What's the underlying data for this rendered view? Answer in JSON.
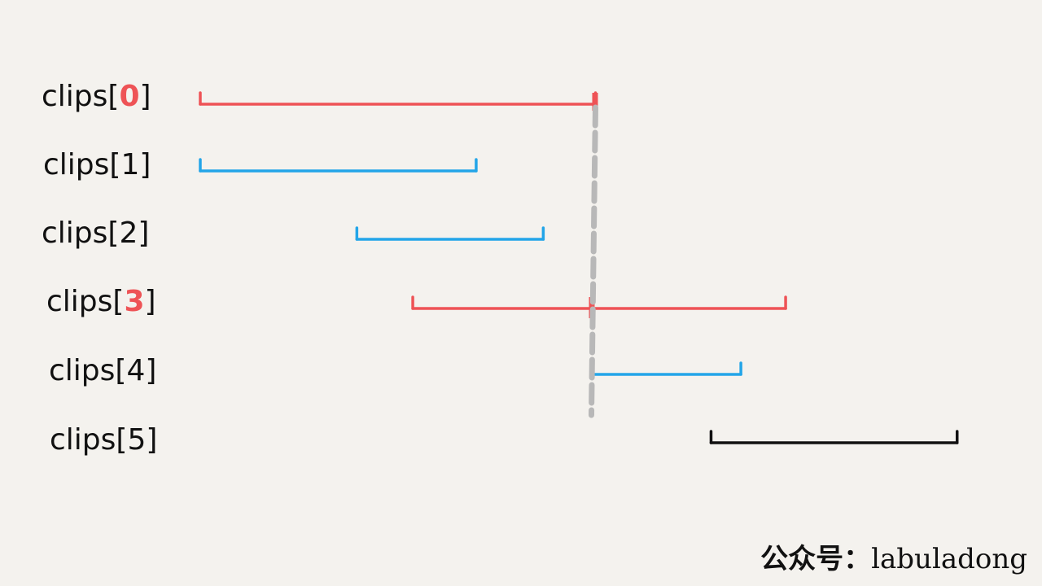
{
  "colors": {
    "selected": "#ee5356",
    "normal": "#23a5e8",
    "unreached": "#111111",
    "cut_line": "#b8b8b8",
    "background": "#f4f2ee"
  },
  "clips": [
    {
      "prefix": "clips[",
      "index": "0",
      "suffix": "]",
      "start": 0,
      "end": 10.6,
      "status": "selected"
    },
    {
      "prefix": "clips[",
      "index": "1",
      "suffix": "]",
      "start": 0,
      "end": 7.4,
      "status": "normal"
    },
    {
      "prefix": "clips[",
      "index": "2",
      "suffix": "]",
      "start": 4.2,
      "end": 9.2,
      "status": "normal"
    },
    {
      "prefix": "clips[",
      "index": "3",
      "suffix": "]",
      "start": 5.7,
      "end": 15.7,
      "status": "selected"
    },
    {
      "prefix": "clips[",
      "index": "4",
      "suffix": "]",
      "start": 10.5,
      "end": 14.5,
      "status": "normal"
    },
    {
      "prefix": "clips[",
      "index": "5",
      "suffix": "]",
      "start": 13.7,
      "end": 20.3,
      "status": "unreached"
    }
  ],
  "cut_position": 10.6,
  "watermark": {
    "cn": "公众号：",
    "en": "labuladong"
  }
}
